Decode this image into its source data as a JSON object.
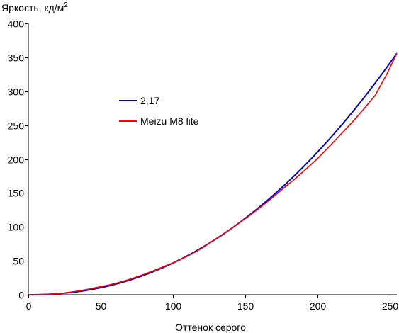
{
  "chart_data": {
    "type": "line",
    "title": "",
    "ylabel": "Яркость, кд/м",
    "ylabel_superscript": "2",
    "xlabel": "Оттенок серого",
    "xlim": [
      0,
      255
    ],
    "ylim": [
      0,
      400
    ],
    "x_ticks": [
      0,
      50,
      100,
      150,
      200,
      250
    ],
    "y_ticks": [
      0,
      50,
      100,
      150,
      200,
      250,
      300,
      350,
      400
    ],
    "grid": false,
    "legend_position": "left-middle",
    "series": [
      {
        "name": "2,17",
        "color": "#0000cc",
        "gamma": 2.17,
        "ymax": 356
      },
      {
        "name": "Meizu M8 lite",
        "color": "#ff0000",
        "x": [
          0,
          8,
          16,
          24,
          32,
          40,
          48,
          56,
          64,
          72,
          80,
          88,
          96,
          104,
          112,
          120,
          128,
          136,
          144,
          152,
          160,
          168,
          176,
          184,
          192,
          200,
          208,
          216,
          224,
          232,
          240,
          248,
          255
        ],
        "y": [
          0,
          0.2,
          0.8,
          2.3,
          4.7,
          7.5,
          11,
          14.5,
          18.8,
          24,
          30,
          36.5,
          43.5,
          50.5,
          59,
          68.5,
          80,
          91,
          103,
          115,
          128,
          141.5,
          156,
          170,
          185,
          200.5,
          218,
          236,
          254,
          273.5,
          294,
          325,
          356
        ]
      }
    ]
  }
}
